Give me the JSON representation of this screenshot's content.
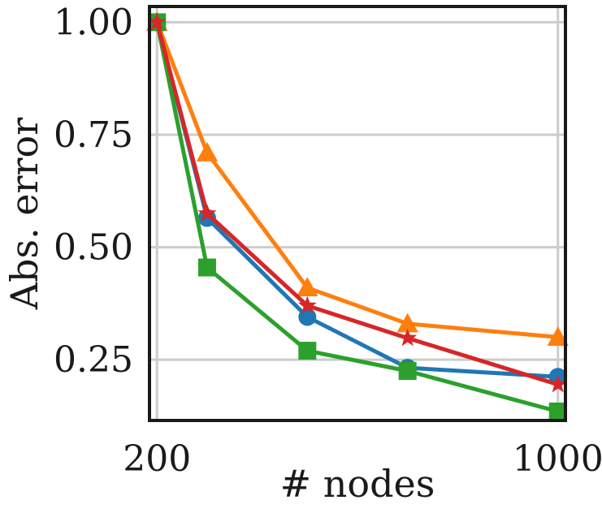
{
  "chart_data": {
    "type": "line",
    "title": "",
    "xlabel": "# nodes",
    "ylabel": "Abs. error",
    "x": [
      200,
      300,
      500,
      700,
      1000
    ],
    "xlim": [
      185,
      1015
    ],
    "ylim": [
      0.115,
      1.035
    ],
    "xticks": [
      200,
      1000
    ],
    "xtick_labels": [
      "200",
      "1000"
    ],
    "yticks": [
      0.25,
      0.5,
      0.75,
      1.0
    ],
    "ytick_labels": [
      "0.25",
      "0.50",
      "0.75",
      "1.00"
    ],
    "grid": true,
    "legend": "none",
    "series": [
      {
        "color": "#1f77b4",
        "marker": "circle",
        "values": [
          1.0,
          0.565,
          0.345,
          0.232,
          0.212
        ]
      },
      {
        "color": "#ff7f0e",
        "marker": "triangle",
        "values": [
          1.0,
          0.71,
          0.41,
          0.33,
          0.3
        ]
      },
      {
        "color": "#2ca02c",
        "marker": "square",
        "values": [
          1.0,
          0.455,
          0.27,
          0.225,
          0.135
        ]
      },
      {
        "color": "#d62728",
        "marker": "star",
        "values": [
          1.0,
          0.575,
          0.37,
          0.298,
          0.195
        ]
      }
    ]
  }
}
